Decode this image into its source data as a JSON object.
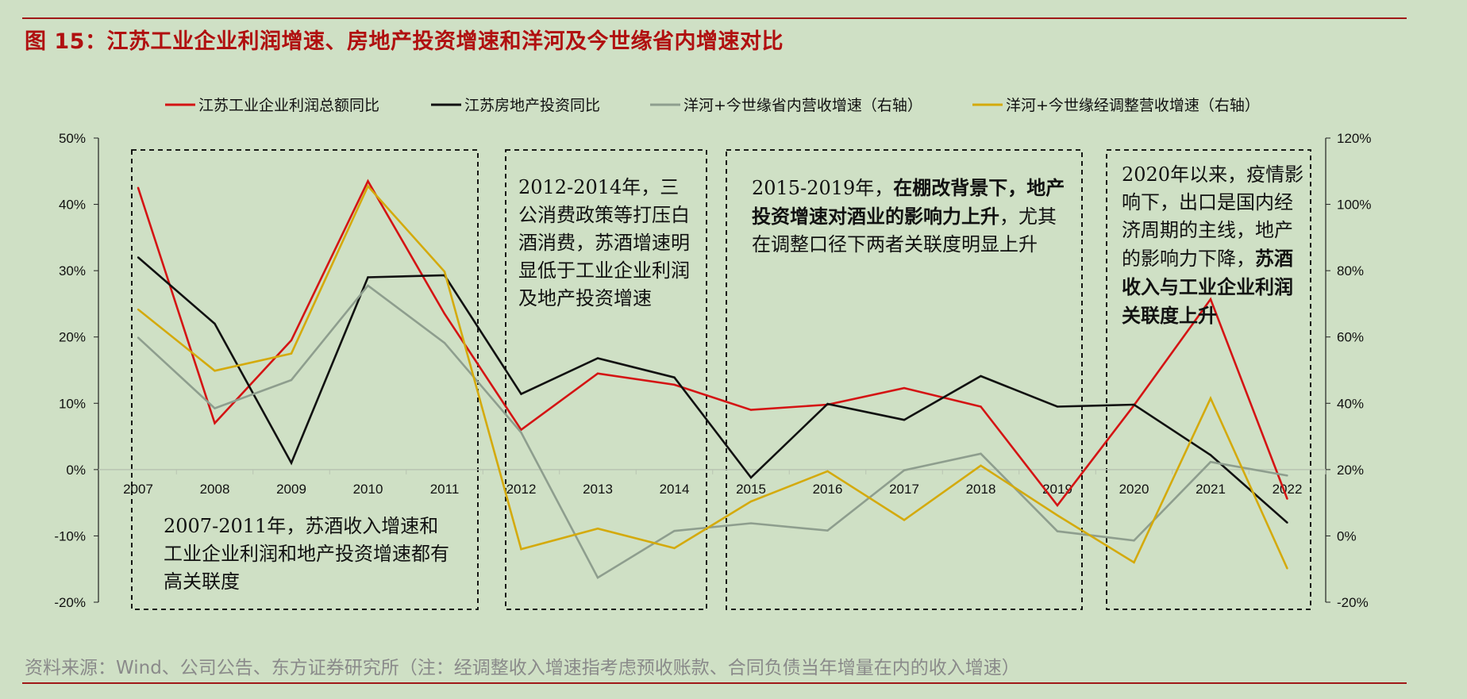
{
  "figure": {
    "title": "图 15：江苏工业企业利润增速、房地产投资增速和洋河及今世缘省内增速对比",
    "source": "资料来源：Wind、公司公告、东方证券研究所（注：经调整收入增速指考虑预收账款、合同负债当年增量在内的收入增速）"
  },
  "annotations": [
    {
      "parts": [
        {
          "t": "2007-2011年，苏酒收入增速和工业企业利润和地产投资增速都有高关联度",
          "b": false
        }
      ]
    },
    {
      "parts": [
        {
          "t": "2012-2014年，三公消费政策等打压白酒消费，苏酒增速明显低于工业企业利润及地产投资增速",
          "b": false
        }
      ]
    },
    {
      "parts": [
        {
          "t": "2015-2019年，",
          "b": false
        },
        {
          "t": "在棚改背景下，地产投资增速对酒业的影响力上升",
          "b": true
        },
        {
          "t": "，尤其在调整口径下两者关联度明显上升",
          "b": false
        }
      ]
    },
    {
      "parts": [
        {
          "t": "2020年以来，疫情影响下，出口是国内经济周期的主线，地产的影响力下降，",
          "b": false
        },
        {
          "t": "苏酒收入与工业企业利润关联度上升",
          "b": true
        }
      ]
    }
  ],
  "chart_data": {
    "type": "line",
    "categories": [
      "2007",
      "2008",
      "2009",
      "2010",
      "2011",
      "2012",
      "2013",
      "2014",
      "2015",
      "2016",
      "2017",
      "2018",
      "2019",
      "2020",
      "2021",
      "2022"
    ],
    "y_left": {
      "min": -20,
      "max": 50,
      "ticks": [
        "-20%",
        "-10%",
        "0%",
        "10%",
        "20%",
        "30%",
        "40%",
        "50%"
      ]
    },
    "y_right": {
      "min": -20,
      "max": 120,
      "ticks": [
        "-20%",
        "0%",
        "20%",
        "40%",
        "60%",
        "80%",
        "100%",
        "120%"
      ]
    },
    "grid": false,
    "legend_position": "top",
    "series": [
      {
        "name": "江苏工业企业利润总额同比",
        "axis": "left",
        "color": "#d41414",
        "values": [
          42.5,
          7,
          19.5,
          43.5,
          23.5,
          6,
          14.5,
          12.8,
          9,
          9.8,
          12.3,
          9.5,
          -5.4,
          9.7,
          25.7,
          -4.4
        ]
      },
      {
        "name": "江苏房地产投资同比",
        "axis": "left",
        "color": "#111111",
        "values": [
          32,
          22,
          1,
          29,
          29.3,
          11.4,
          16.8,
          13.9,
          -1.2,
          9.9,
          7.5,
          14.1,
          9.5,
          9.8,
          2.2,
          -8
        ]
      },
      {
        "name": "洋河+今世缘省内营收增速（右轴）",
        "axis": "right",
        "color": "#8e9e8e",
        "values": [
          59.8,
          38.5,
          47,
          75.5,
          58.2,
          31.2,
          -12.6,
          1.5,
          3.8,
          1.6,
          19.8,
          24.8,
          1.4,
          -1.4,
          22.3,
          18.2
        ]
      },
      {
        "name": "洋河+今世缘经调整营收增速（右轴）",
        "axis": "right",
        "color": "#d4aa0c",
        "values": [
          68.3,
          49.8,
          55,
          105.5,
          79.7,
          -4,
          2.2,
          -3.7,
          10.4,
          19.5,
          4.8,
          21.2,
          6.2,
          -8,
          41.5,
          -9.8
        ]
      }
    ]
  }
}
